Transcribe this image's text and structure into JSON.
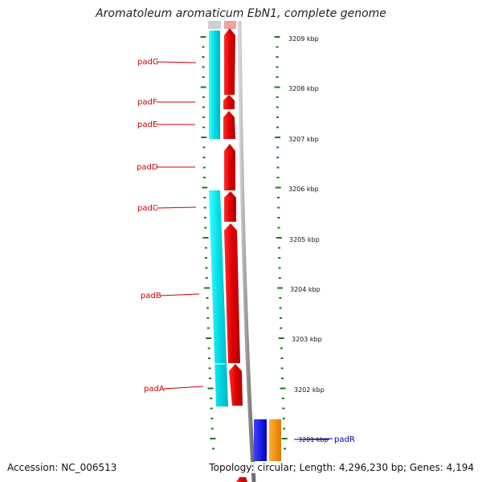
{
  "title": "Aromatoleum aromaticum EbN1, complete genome",
  "footer": {
    "accession": "Accession: NC_006513",
    "summary": "Topology: circular; Length: 4,296,230 bp; Genes: 4,194"
  },
  "scale_labels": [
    "3209 kbp",
    "3208 kbp",
    "3207 kbp",
    "3206 kbp",
    "3205 kbp",
    "3204 kbp",
    "3203 kbp",
    "3202 kbp",
    "3201 kbp"
  ],
  "genes": [
    {
      "name": "padG",
      "label": "padG"
    },
    {
      "name": "padF",
      "label": "padF"
    },
    {
      "name": "padE",
      "label": "padE"
    },
    {
      "name": "padD",
      "label": "padD"
    },
    {
      "name": "padC",
      "label": "padC"
    },
    {
      "name": "padB",
      "label": "padB"
    },
    {
      "name": "padA",
      "label": "padA"
    },
    {
      "name": "padR",
      "label": "padR"
    }
  ],
  "colors": {
    "cds_forward": "#ee0000",
    "feature_track": "#00e6ee",
    "blue_gene": "#1010ee",
    "orange_gene": "#ff9900",
    "backbone": "#9a9a9a",
    "tick": "#1a7a1a",
    "label_red": "#cc0000",
    "label_blue": "#0000aa"
  }
}
